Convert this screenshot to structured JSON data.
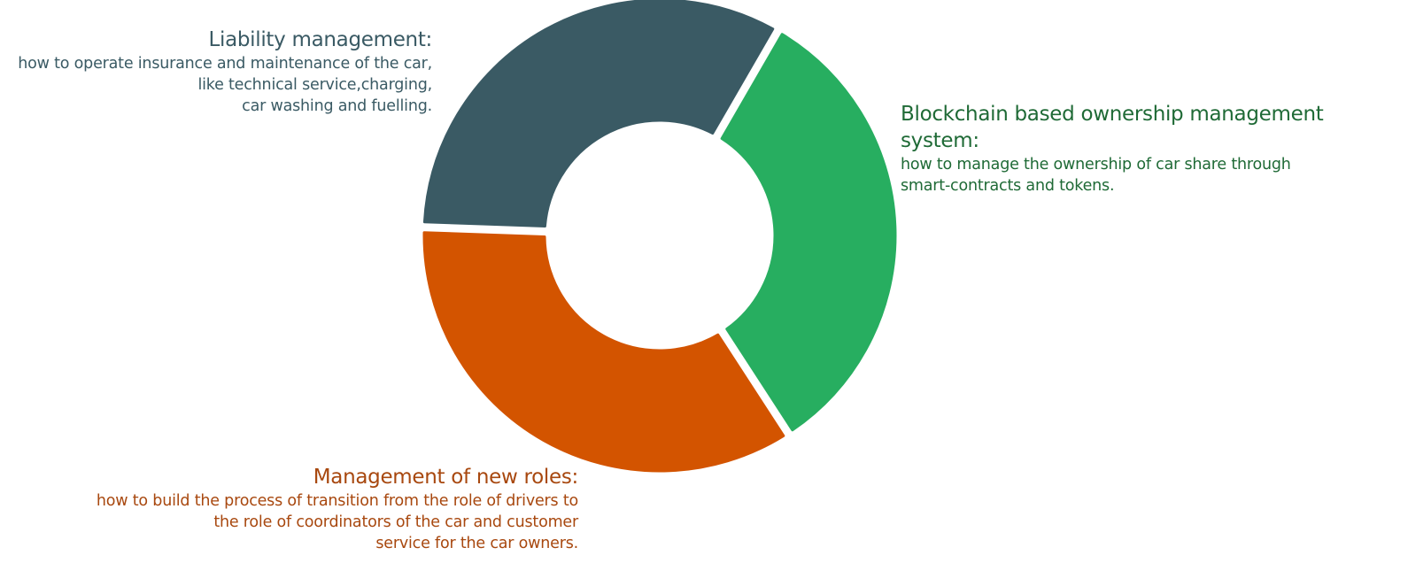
{
  "diagram": {
    "segments": [
      {
        "key": "liability",
        "title": "Liability management:",
        "description": "how to operate insurance and maintenance of the car,\nlike technical service,charging,\ncar washing and fuelling.",
        "color": "#3a5a64",
        "text_color": "#3a5a64"
      },
      {
        "key": "blockchain",
        "title": "Blockchain based ownership management system:",
        "description": "how to manage the ownership of car share through\nsmart-contracts and tokens.",
        "color": "#27ae60",
        "text_color": "#1f6a36"
      },
      {
        "key": "roles",
        "title": "Management of new roles:",
        "description": "how to build the process of transition from the role of drivers to\nthe role of coordinators of the car and customer\nservice for the car owners.",
        "color": "#d35400",
        "text_color": "#a8480f"
      }
    ]
  }
}
